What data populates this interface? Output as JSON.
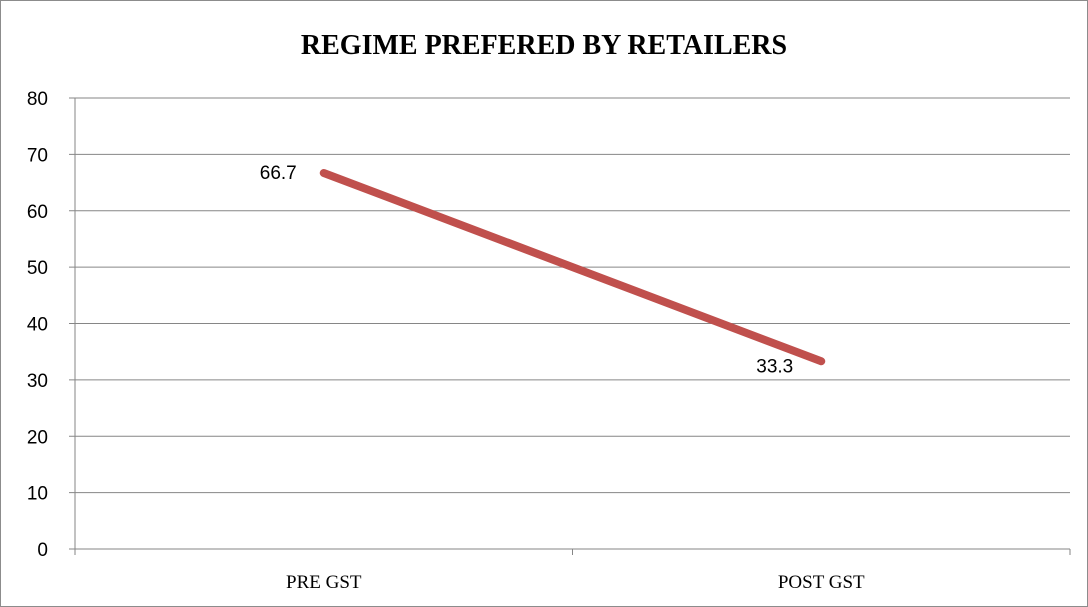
{
  "chart_data": {
    "type": "line",
    "title": "REGIME PREFERED BY RETAILERS",
    "categories": [
      "PRE GST",
      "POST GST"
    ],
    "series": [
      {
        "values": [
          66.7,
          33.3
        ],
        "color": "#c0504d"
      }
    ],
    "data_labels": [
      "66.7",
      "33.3"
    ],
    "ylim": [
      0,
      80
    ],
    "yticks": [
      0,
      10,
      20,
      30,
      40,
      50,
      60,
      70,
      80
    ],
    "grid": true,
    "legend": "none",
    "xlabel": "",
    "ylabel": ""
  }
}
